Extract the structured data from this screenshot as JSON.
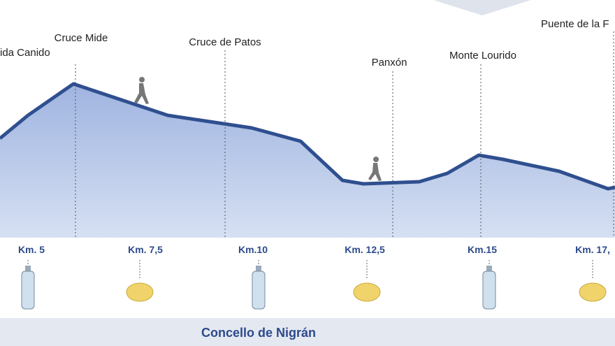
{
  "waypoints": [
    {
      "label": "ida Canido"
    },
    {
      "label": "Cruce Mide"
    },
    {
      "label": "Cruce de Patos"
    },
    {
      "label": "Panxón"
    },
    {
      "label": "Monte Lourido"
    },
    {
      "label": "Puente de la F"
    }
  ],
  "km_markers": [
    "Km. 5",
    "Km. 7,5",
    "Km.10",
    "Km. 12,5",
    "Km.15",
    "Km. 17,"
  ],
  "footer": "Concello de Nigrán"
}
